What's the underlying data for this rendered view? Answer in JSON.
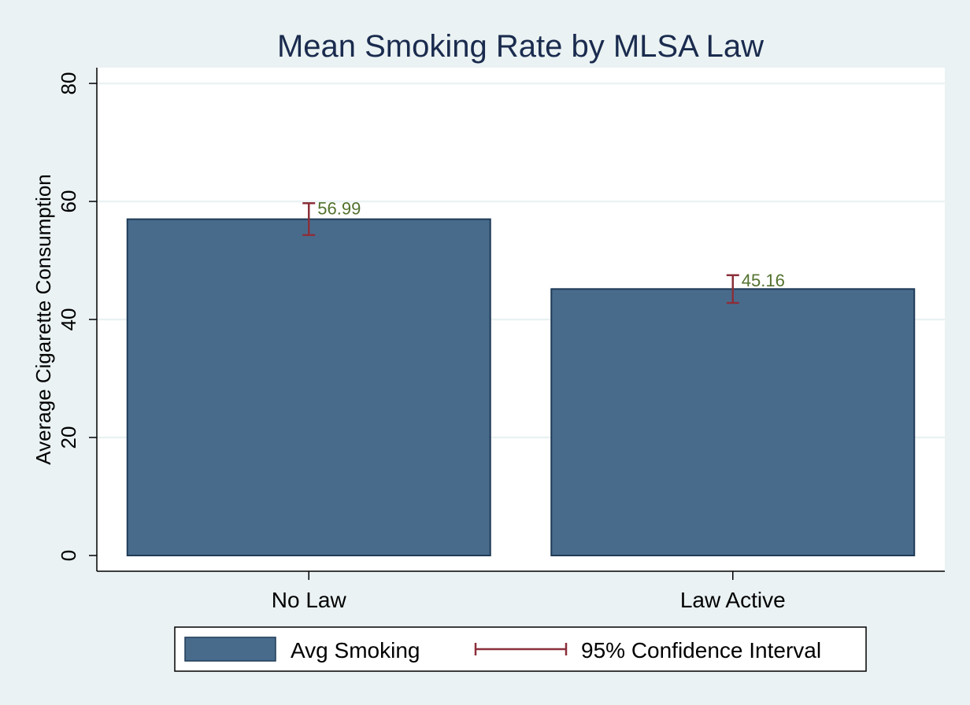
{
  "chart_data": {
    "type": "bar",
    "title": "Mean Smoking Rate by MLSA Law",
    "ylabel": "Average Cigarette Consumption",
    "xlabel": "",
    "categories": [
      "No Law",
      "Law Active"
    ],
    "series": [
      {
        "name": "Avg Smoking",
        "values": [
          56.99,
          45.16
        ],
        "value_labels": [
          "56.99",
          "45.16"
        ],
        "ci_lower": [
          54.3,
          42.8
        ],
        "ci_upper": [
          59.7,
          47.5
        ]
      }
    ],
    "ci_legend": "95% Confidence Interval",
    "ylim": [
      0,
      80
    ],
    "yticks": [
      0,
      20,
      40,
      60,
      80
    ],
    "ytick_labels": [
      "0",
      "20",
      "40",
      "60",
      "80"
    ],
    "grid": true,
    "legend_position": "bottom"
  },
  "colors": {
    "background": "#eaf2f3",
    "plot_background": "#ffffff",
    "grid": "#eaf2f3",
    "bar_fill": "#486b8c",
    "bar_stroke": "#1f3b57",
    "ci": "#8b2f3a",
    "data_label": "#52722e",
    "title": "#1a2b4e"
  }
}
